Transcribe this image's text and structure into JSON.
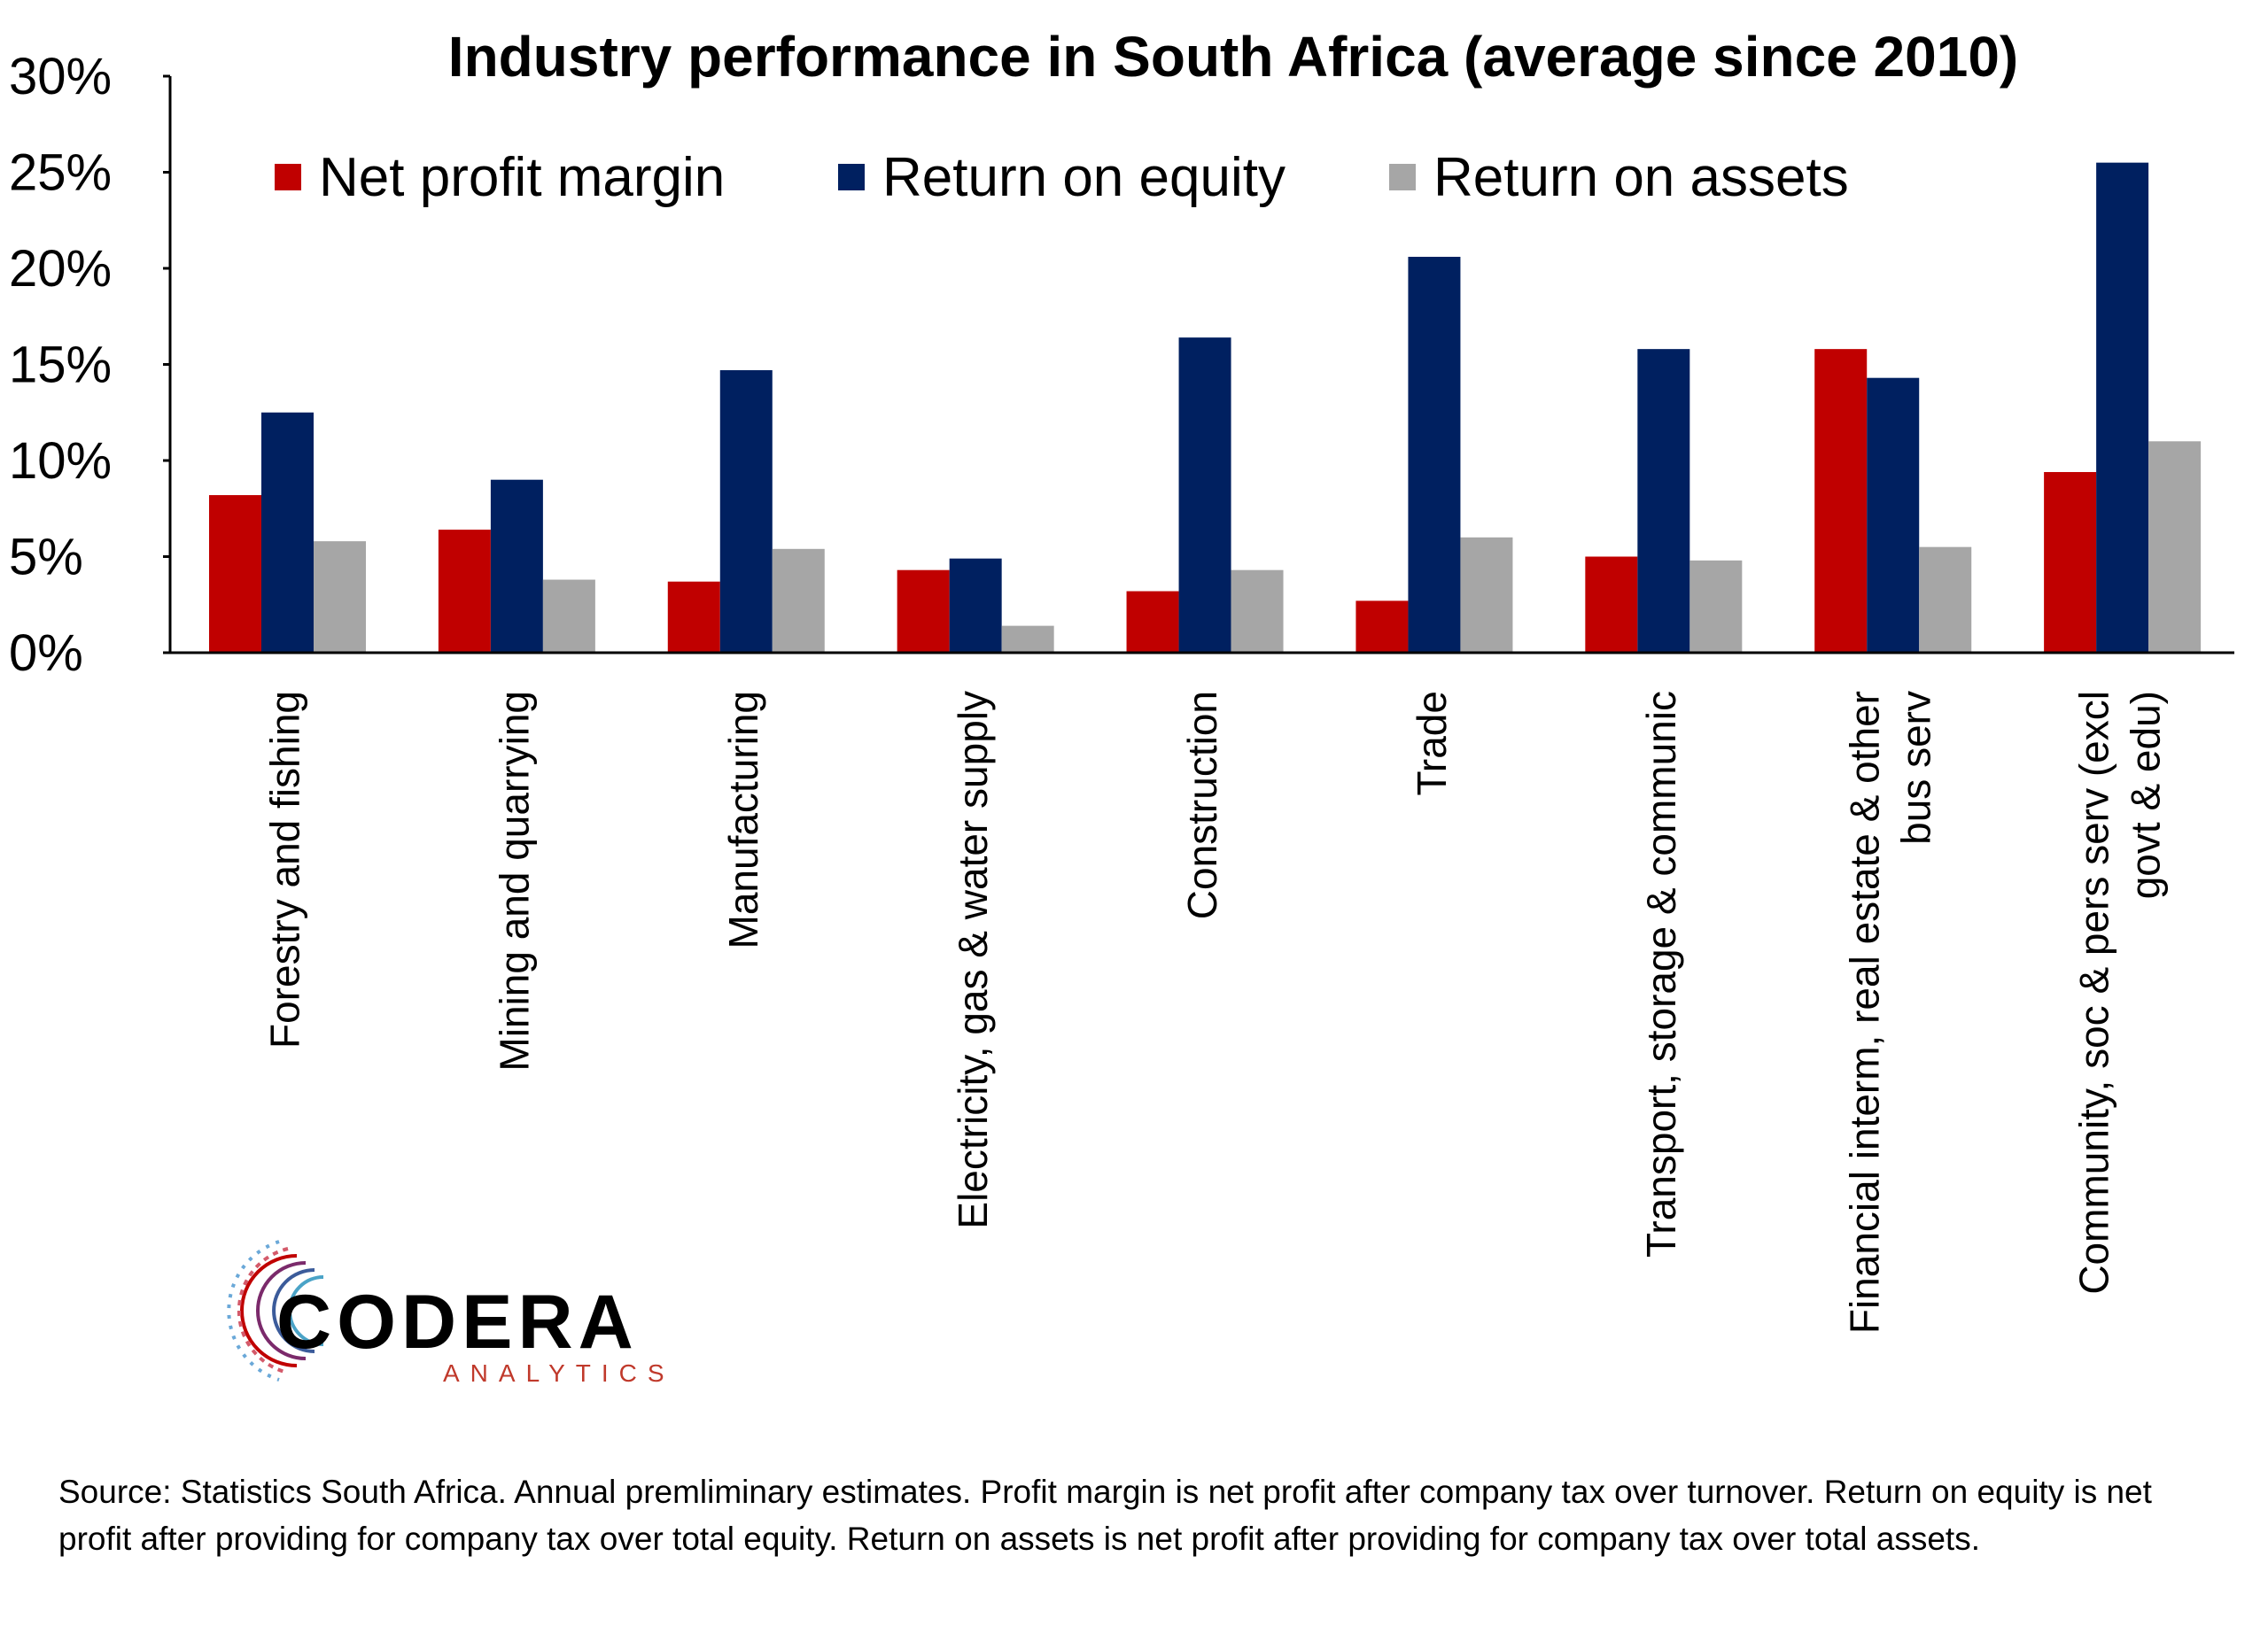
{
  "chart_data": {
    "type": "bar",
    "title": "Industry performance in South Africa (average since 2010)",
    "categories": [
      [
        "Forestry and fishing"
      ],
      [
        "Mining and quarrying"
      ],
      [
        "Manufacturing"
      ],
      [
        "Electricity, gas & water supply"
      ],
      [
        "Construction"
      ],
      [
        "Trade"
      ],
      [
        "Transport, storage & communic"
      ],
      [
        "Financial interm, real estate & other",
        "bus serv"
      ],
      [
        "Community, soc & pers serv  (excl",
        "govt & edu)"
      ]
    ],
    "series": [
      {
        "name": "Net profit margin",
        "color": "#c00000",
        "values": [
          8.2,
          6.4,
          3.7,
          4.3,
          3.2,
          2.7,
          5.0,
          15.8,
          9.4
        ]
      },
      {
        "name": "Return on equity",
        "color": "#002060",
        "values": [
          12.5,
          9.0,
          14.7,
          4.9,
          16.4,
          20.6,
          15.8,
          14.3,
          25.5
        ]
      },
      {
        "name": "Return on assets",
        "color": "#a6a6a6",
        "values": [
          5.8,
          3.8,
          5.4,
          1.4,
          4.3,
          6.0,
          4.8,
          5.5,
          11.0
        ]
      }
    ],
    "ylim": [
      0,
      30
    ],
    "yticks": [
      "0%",
      "5%",
      "10%",
      "15%",
      "20%",
      "25%",
      "30%"
    ],
    "ytick_values": [
      0,
      5,
      10,
      15,
      20,
      25,
      30
    ],
    "legend_position": "top",
    "grid": false
  },
  "logo": {
    "name": "CODERA",
    "subtitle": "ANALYTICS"
  },
  "source_note": "Source: Statistics South Africa. Annual premliminary estimates. Profit margin is net profit after company tax over turnover. Return on equity is net profit after providing for company tax over total equity. Return on assets is net profit after providing for company tax over total assets."
}
